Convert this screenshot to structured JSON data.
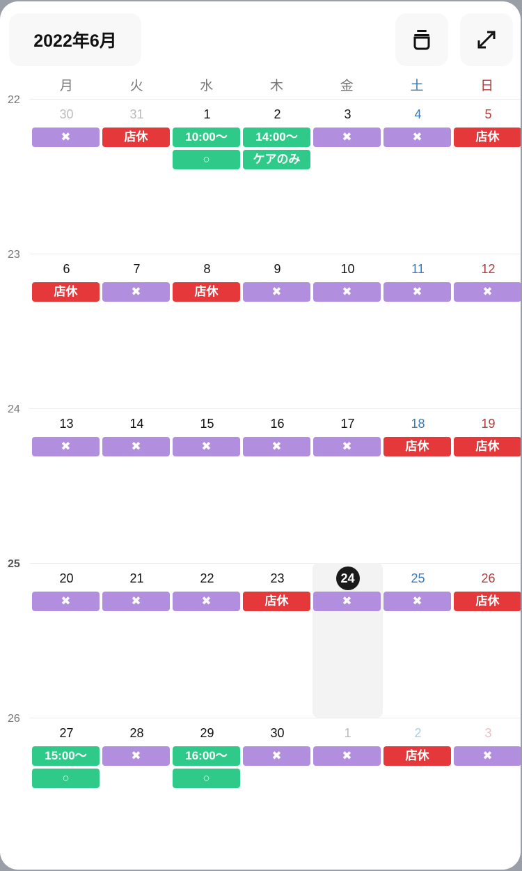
{
  "header": {
    "title": "2022年6月",
    "icons": [
      "stack-icon",
      "expand-icon"
    ]
  },
  "colors": {
    "purple": "#b18ede",
    "red": "#e5383b",
    "green": "#2fca89",
    "saturday": "#3b78b4",
    "sunday": "#b53a3a"
  },
  "weekdays": [
    "月",
    "火",
    "水",
    "木",
    "金",
    "土",
    "日"
  ],
  "current_week": "25",
  "today": "24",
  "weeks": [
    {
      "num": "22",
      "days": [
        {
          "d": "30",
          "other": true,
          "ev": [
            [
              "✖",
              "purple"
            ]
          ]
        },
        {
          "d": "31",
          "other": true,
          "ev": [
            [
              "店休",
              "red"
            ]
          ]
        },
        {
          "d": "1",
          "ev": [
            [
              "10:00〜",
              "green"
            ],
            [
              "○",
              "green"
            ]
          ]
        },
        {
          "d": "2",
          "ev": [
            [
              "14:00〜",
              "green"
            ],
            [
              "ケアのみ",
              "green"
            ]
          ]
        },
        {
          "d": "3",
          "ev": [
            [
              "✖",
              "purple"
            ]
          ]
        },
        {
          "d": "4",
          "ev": [
            [
              "✖",
              "purple"
            ]
          ]
        },
        {
          "d": "5",
          "ev": [
            [
              "店休",
              "red"
            ]
          ]
        }
      ]
    },
    {
      "num": "23",
      "days": [
        {
          "d": "6",
          "ev": [
            [
              "店休",
              "red"
            ]
          ]
        },
        {
          "d": "7",
          "ev": [
            [
              "✖",
              "purple"
            ]
          ]
        },
        {
          "d": "8",
          "ev": [
            [
              "店休",
              "red"
            ]
          ]
        },
        {
          "d": "9",
          "ev": [
            [
              "✖",
              "purple"
            ]
          ]
        },
        {
          "d": "10",
          "ev": [
            [
              "✖",
              "purple"
            ]
          ]
        },
        {
          "d": "11",
          "ev": [
            [
              "✖",
              "purple"
            ]
          ]
        },
        {
          "d": "12",
          "ev": [
            [
              "✖",
              "purple"
            ]
          ]
        }
      ]
    },
    {
      "num": "24",
      "days": [
        {
          "d": "13",
          "ev": [
            [
              "✖",
              "purple"
            ]
          ]
        },
        {
          "d": "14",
          "ev": [
            [
              "✖",
              "purple"
            ]
          ]
        },
        {
          "d": "15",
          "ev": [
            [
              "✖",
              "purple"
            ]
          ]
        },
        {
          "d": "16",
          "ev": [
            [
              "✖",
              "purple"
            ]
          ]
        },
        {
          "d": "17",
          "ev": [
            [
              "✖",
              "purple"
            ]
          ]
        },
        {
          "d": "18",
          "ev": [
            [
              "店休",
              "red"
            ]
          ]
        },
        {
          "d": "19",
          "ev": [
            [
              "店休",
              "red"
            ]
          ]
        }
      ]
    },
    {
      "num": "25",
      "days": [
        {
          "d": "20",
          "ev": [
            [
              "✖",
              "purple"
            ]
          ]
        },
        {
          "d": "21",
          "ev": [
            [
              "✖",
              "purple"
            ]
          ]
        },
        {
          "d": "22",
          "ev": [
            [
              "✖",
              "purple"
            ]
          ]
        },
        {
          "d": "23",
          "ev": [
            [
              "店休",
              "red"
            ]
          ]
        },
        {
          "d": "24",
          "today": true,
          "ev": [
            [
              "✖",
              "purple"
            ]
          ]
        },
        {
          "d": "25",
          "ev": [
            [
              "✖",
              "purple"
            ]
          ]
        },
        {
          "d": "26",
          "ev": [
            [
              "店休",
              "red"
            ]
          ]
        }
      ]
    },
    {
      "num": "26",
      "days": [
        {
          "d": "27",
          "ev": [
            [
              "15:00〜",
              "green"
            ],
            [
              "○",
              "green"
            ]
          ]
        },
        {
          "d": "28",
          "ev": [
            [
              "✖",
              "purple"
            ]
          ]
        },
        {
          "d": "29",
          "ev": [
            [
              "16:00〜",
              "green"
            ],
            [
              "○",
              "green"
            ]
          ]
        },
        {
          "d": "30",
          "ev": [
            [
              "✖",
              "purple"
            ]
          ]
        },
        {
          "d": "1",
          "other": true,
          "ev": [
            [
              "✖",
              "purple"
            ]
          ]
        },
        {
          "d": "2",
          "other": true,
          "ev": [
            [
              "店休",
              "red"
            ]
          ]
        },
        {
          "d": "3",
          "other": true,
          "ev": [
            [
              "✖",
              "purple"
            ]
          ]
        }
      ]
    }
  ]
}
